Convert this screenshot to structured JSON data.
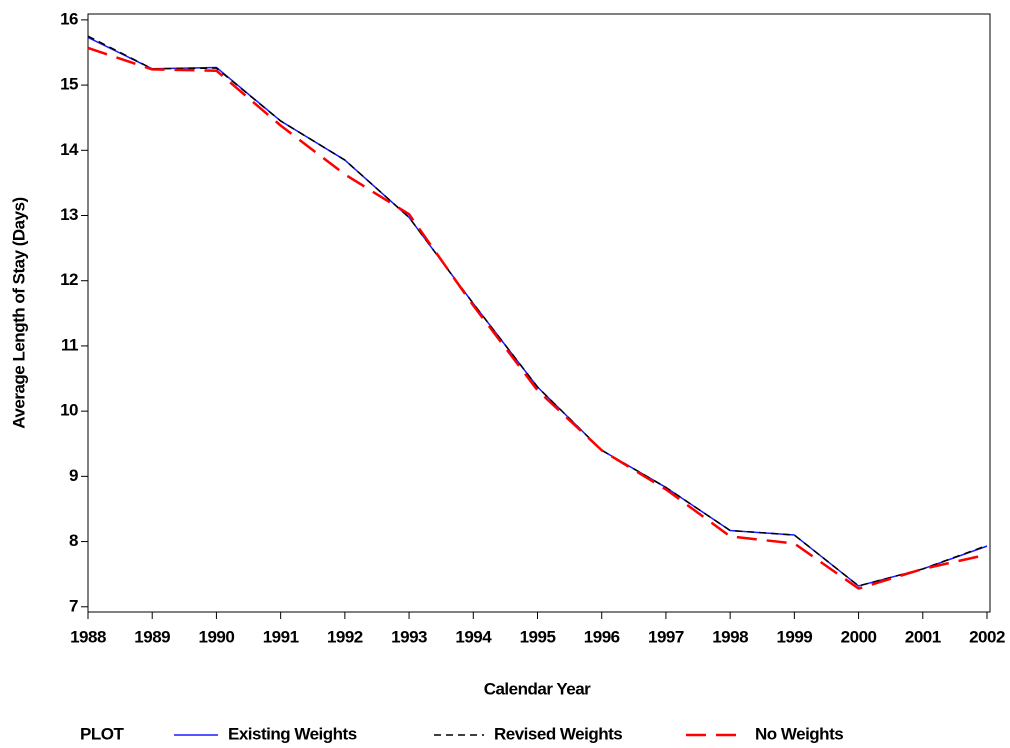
{
  "chart_data": {
    "type": "line",
    "x_label": "Calendar Year",
    "y_label": "Average Length of Stay (Days)",
    "x": [
      1988,
      1989,
      1990,
      1991,
      1992,
      1993,
      1994,
      1995,
      1996,
      1997,
      1998,
      1999,
      2000,
      2001,
      2002
    ],
    "xlim": [
      1988,
      2002
    ],
    "xticks": [
      1988,
      1989,
      1990,
      1991,
      1992,
      1993,
      1994,
      1995,
      1996,
      1997,
      1998,
      1999,
      2000,
      2001,
      2002
    ],
    "ylim": [
      6.92,
      16.09
    ],
    "yticks": [
      7,
      8,
      9,
      10,
      11,
      12,
      13,
      14,
      15,
      16
    ],
    "legend_title": "PLOT",
    "legend_position": "bottom",
    "series": [
      {
        "name": "Existing Weights",
        "color": "#1a1aff",
        "line_style": "solid",
        "values": [
          15.73,
          15.25,
          15.27,
          14.45,
          13.85,
          12.97,
          11.65,
          10.37,
          9.4,
          8.83,
          8.17,
          8.1,
          7.32,
          7.58,
          7.93
        ]
      },
      {
        "name": "Revised Weights",
        "color": "#000000",
        "line_style": "dashed",
        "values": [
          15.75,
          15.25,
          15.26,
          14.45,
          13.85,
          12.97,
          11.65,
          10.37,
          9.4,
          8.83,
          8.17,
          8.1,
          7.32,
          7.58,
          7.94
        ]
      },
      {
        "name": "No Weights",
        "color": "#ff0000",
        "line_style": "long-dashed",
        "values": [
          15.57,
          15.24,
          15.22,
          14.38,
          13.63,
          13.02,
          11.62,
          10.32,
          9.4,
          8.8,
          8.08,
          7.97,
          7.28,
          7.58,
          7.8
        ]
      }
    ]
  }
}
